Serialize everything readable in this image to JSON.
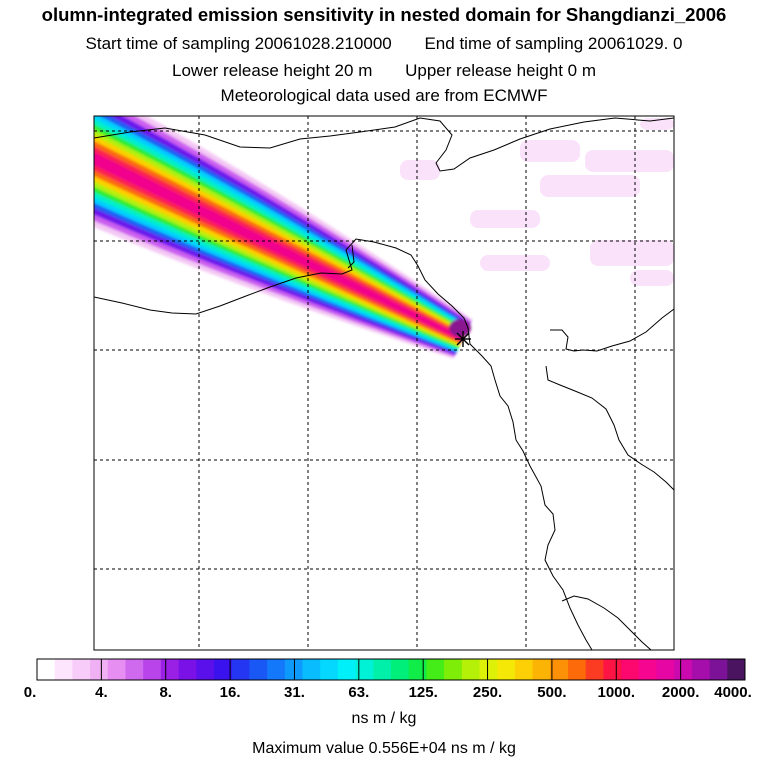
{
  "title": {
    "line1": "olumn-integrated emission sensitivity in nested domain for Shangdianzi_2006",
    "start": "Start time of sampling 20061028.210000",
    "end": "End time of sampling 20061029.    0",
    "lower": "Lower release height   20 m",
    "upper": "Upper release height    0 m",
    "met": "Meteorological data used are from ECMWF"
  },
  "colors": {
    "scale": [
      "#ffffff",
      "#fde6fd",
      "#f8ccf8",
      "#f0b0f4",
      "#e68ef2",
      "#cf6aee",
      "#b844ea",
      "#9a20e6",
      "#7a12e8",
      "#5a10ea",
      "#3a12ee",
      "#2436f2",
      "#1a58f6",
      "#1478fa",
      "#0e9afc",
      "#08bcfe",
      "#04d8fe",
      "#00f0fa",
      "#00f2d6",
      "#00f0aa",
      "#00ee7a",
      "#10ec48",
      "#44ec18",
      "#7eee08",
      "#b4f008",
      "#dcf008",
      "#f6e806",
      "#fcd004",
      "#fcb404",
      "#fc9006",
      "#fc6a0a",
      "#fc3c22",
      "#fc1444",
      "#fc086e",
      "#f60690",
      "#e606a4",
      "#ca0aae",
      "#a60eac",
      "#7c1298",
      "#4a1460"
    ]
  },
  "colorbar": {
    "labels": [
      "0.",
      "4.",
      "8.",
      "16.",
      "31.",
      "63.",
      "125.",
      "250.",
      "500.",
      "1000.",
      "2000.",
      "4000."
    ]
  },
  "units": "ns m / kg",
  "max_value": "Maximum value  0.556E+04 ns m / kg"
}
